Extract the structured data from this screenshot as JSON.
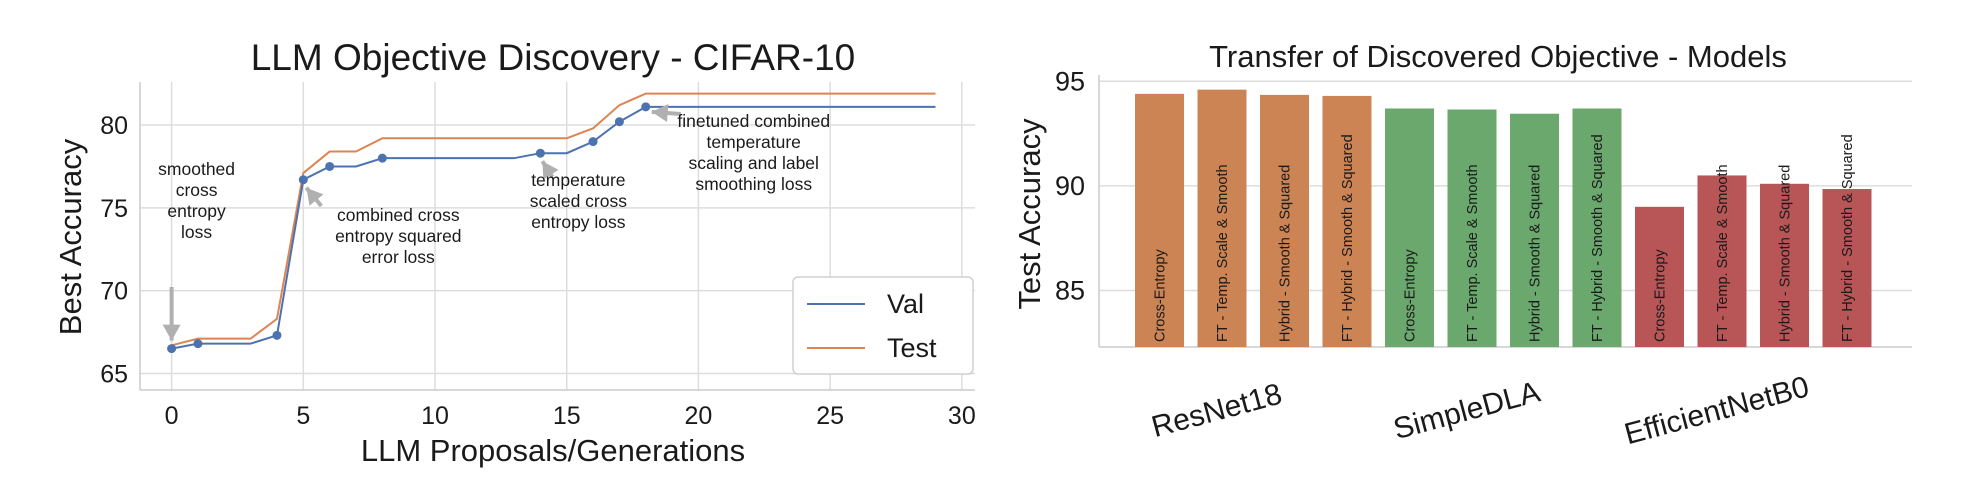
{
  "chart_data": [
    {
      "type": "line",
      "title": "LLM Objective Discovery - CIFAR-10",
      "xlabel": "LLM Proposals/Generations",
      "ylabel": "Best Accuracy",
      "xlim": [
        -1.2,
        30.5
      ],
      "ylim": [
        64,
        82.6
      ],
      "xticks": [
        0,
        5,
        10,
        15,
        20,
        25,
        30
      ],
      "yticks": [
        65,
        70,
        75,
        80
      ],
      "grid": true,
      "legend": "bottom-right",
      "series": [
        {
          "name": "Val",
          "color": "#4c72b0",
          "x": [
            0,
            1,
            2,
            3,
            4,
            5,
            6,
            7,
            8,
            9,
            10,
            11,
            12,
            13,
            14,
            15,
            16,
            17,
            18,
            19,
            20,
            21,
            22,
            23,
            24,
            25,
            26,
            27,
            28,
            29
          ],
          "y": [
            66.5,
            66.8,
            66.8,
            66.8,
            67.3,
            76.7,
            77.5,
            77.5,
            78.0,
            78.0,
            78.0,
            78.0,
            78.0,
            78.0,
            78.3,
            78.3,
            79.0,
            80.2,
            81.1,
            81.1,
            81.1,
            81.1,
            81.1,
            81.1,
            81.1,
            81.1,
            81.1,
            81.1,
            81.1,
            81.1
          ],
          "markers_at": [
            0,
            1,
            4,
            5,
            6,
            8,
            14,
            16,
            17,
            18
          ]
        },
        {
          "name": "Test",
          "color": "#dd8452",
          "x": [
            0,
            1,
            2,
            3,
            4,
            5,
            6,
            7,
            8,
            9,
            10,
            11,
            12,
            13,
            14,
            15,
            16,
            17,
            18,
            19,
            20,
            21,
            22,
            23,
            24,
            25,
            26,
            27,
            28,
            29
          ],
          "y": [
            66.7,
            67.1,
            67.1,
            67.1,
            68.3,
            77.1,
            78.4,
            78.4,
            79.2,
            79.2,
            79.2,
            79.2,
            79.2,
            79.2,
            79.2,
            79.2,
            79.8,
            81.2,
            81.9,
            81.9,
            81.9,
            81.9,
            81.9,
            81.9,
            81.9,
            81.9,
            81.9,
            81.9,
            81.9,
            81.9
          ]
        }
      ],
      "annotations": [
        {
          "lines": [
            "smoothed",
            "cross",
            "entropy",
            "loss"
          ],
          "x": 0,
          "y": 66.5
        },
        {
          "lines": [
            "combined cross",
            "entropy squared",
            "error loss"
          ],
          "x": 5,
          "y": 76.7
        },
        {
          "lines": [
            "temperature",
            "scaled cross",
            "entropy loss"
          ],
          "x": 14,
          "y": 78.3
        },
        {
          "lines": [
            "finetuned combined",
            "temperature",
            "scaling and label",
            "smoothing loss"
          ],
          "x": 18,
          "y": 81.1
        }
      ]
    },
    {
      "type": "bar",
      "title": "Transfer of Discovered Objective - Models",
      "xlabel": "",
      "ylabel": "Test Accuracy",
      "ylim": [
        82.3,
        95.3
      ],
      "yticks": [
        85,
        90,
        95
      ],
      "grid": true,
      "groups": [
        {
          "name": "ResNet18",
          "color": "#cc8455",
          "bars": [
            {
              "label": "Cross-Entropy",
              "value": 94.4
            },
            {
              "label": "FT - Temp. Scale & Smooth",
              "value": 94.6
            },
            {
              "label": "Hybrid - Smooth & Squared",
              "value": 94.35
            },
            {
              "label": "FT - Hybrid - Smooth & Squared",
              "value": 94.3
            }
          ]
        },
        {
          "name": "SimpleDLA",
          "color": "#6aa86d",
          "bars": [
            {
              "label": "Cross-Entropy",
              "value": 93.7
            },
            {
              "label": "FT - Temp. Scale & Smooth",
              "value": 93.65
            },
            {
              "label": "Hybrid - Smooth & Squared",
              "value": 93.45
            },
            {
              "label": "FT - Hybrid - Smooth & Squared",
              "value": 93.7
            }
          ]
        },
        {
          "name": "EfficientNetB0",
          "color": "#b85556",
          "bars": [
            {
              "label": "Cross-Entropy",
              "value": 89.0
            },
            {
              "label": "FT - Temp. Scale & Smooth",
              "value": 90.5
            },
            {
              "label": "Hybrid - Smooth & Squared",
              "value": 90.1
            },
            {
              "label": "FT - Hybrid - Smooth & Squared",
              "value": 89.85
            }
          ]
        }
      ]
    }
  ]
}
